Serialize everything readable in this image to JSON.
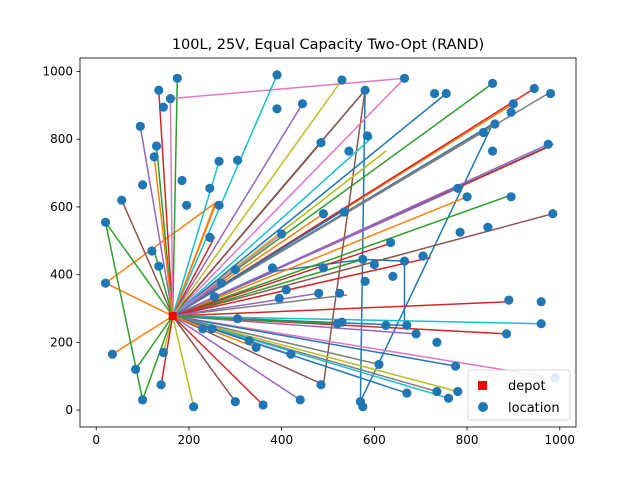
{
  "chart_data": {
    "type": "scatter",
    "title": "100L, 25V, Equal Capacity Two-Opt (RAND)",
    "xlabel": "",
    "ylabel": "",
    "xlim": [
      -35,
      1035
    ],
    "ylim": [
      -50,
      1040
    ],
    "x_ticks": [
      0,
      200,
      400,
      600,
      800,
      1000
    ],
    "y_ticks": [
      0,
      200,
      400,
      600,
      800,
      1000
    ],
    "grid": false,
    "legend_position": "lower-right",
    "legend": [
      {
        "label": "depot",
        "marker": "square",
        "color": "#ff0000"
      },
      {
        "label": "location",
        "marker": "circle",
        "color": "#1f77b4"
      }
    ],
    "depot": {
      "x": 165,
      "y": 278
    },
    "locations": [
      [
        135,
        945
      ],
      [
        175,
        980
      ],
      [
        160,
        920
      ],
      [
        145,
        895
      ],
      [
        95,
        838
      ],
      [
        130,
        780
      ],
      [
        125,
        748
      ],
      [
        185,
        678
      ],
      [
        100,
        665
      ],
      [
        55,
        620
      ],
      [
        195,
        605
      ],
      [
        245,
        655
      ],
      [
        265,
        735
      ],
      [
        305,
        738
      ],
      [
        390,
        990
      ],
      [
        390,
        890
      ],
      [
        445,
        905
      ],
      [
        485,
        790
      ],
      [
        530,
        975
      ],
      [
        545,
        765
      ],
      [
        580,
        945
      ],
      [
        585,
        810
      ],
      [
        665,
        980
      ],
      [
        755,
        935
      ],
      [
        855,
        965
      ],
      [
        860,
        845
      ],
      [
        900,
        905
      ],
      [
        895,
        880
      ],
      [
        945,
        950
      ],
      [
        980,
        935
      ],
      [
        975,
        785
      ],
      [
        835,
        820
      ],
      [
        855,
        765
      ],
      [
        780,
        655
      ],
      [
        800,
        630
      ],
      [
        895,
        630
      ],
      [
        985,
        580
      ],
      [
        845,
        540
      ],
      [
        785,
        525
      ],
      [
        730,
        935
      ],
      [
        20,
        555
      ],
      [
        120,
        470
      ],
      [
        135,
        425
      ],
      [
        245,
        510
      ],
      [
        265,
        605
      ],
      [
        300,
        415
      ],
      [
        400,
        520
      ],
      [
        490,
        420
      ],
      [
        535,
        585
      ],
      [
        575,
        445
      ],
      [
        580,
        380
      ],
      [
        635,
        495
      ],
      [
        665,
        440
      ],
      [
        705,
        455
      ],
      [
        20,
        375
      ],
      [
        35,
        165
      ],
      [
        85,
        120
      ],
      [
        100,
        30
      ],
      [
        140,
        75
      ],
      [
        145,
        170
      ],
      [
        210,
        10
      ],
      [
        300,
        25
      ],
      [
        360,
        15
      ],
      [
        440,
        30
      ],
      [
        485,
        75
      ],
      [
        570,
        25
      ],
      [
        575,
        10
      ],
      [
        610,
        135
      ],
      [
        670,
        50
      ],
      [
        735,
        55
      ],
      [
        760,
        35
      ],
      [
        780,
        55
      ],
      [
        775,
        130
      ],
      [
        885,
        225
      ],
      [
        890,
        325
      ],
      [
        960,
        320
      ],
      [
        960,
        255
      ],
      [
        990,
        95
      ],
      [
        330,
        205
      ],
      [
        345,
        185
      ],
      [
        420,
        165
      ],
      [
        520,
        255
      ],
      [
        530,
        260
      ],
      [
        625,
        250
      ],
      [
        670,
        250
      ],
      [
        690,
        225
      ],
      [
        490,
        580
      ],
      [
        480,
        345
      ],
      [
        525,
        345
      ],
      [
        380,
        420
      ],
      [
        230,
        240
      ],
      [
        250,
        240
      ],
      [
        255,
        335
      ],
      [
        305,
        270
      ],
      [
        395,
        330
      ],
      [
        410,
        355
      ],
      [
        600,
        430
      ],
      [
        640,
        395
      ],
      [
        270,
        375
      ],
      [
        735,
        200
      ]
    ],
    "routes": [
      {
        "color": "#1f77b4",
        "points": [
          [
            165,
            278
          ],
          [
            580,
            945
          ],
          [
            570,
            25
          ],
          [
            855,
            845
          ],
          [
            165,
            278
          ],
          [
            985,
            785
          ],
          [
            165,
            278
          ],
          [
            385,
            410
          ],
          [
            575,
            445
          ],
          [
            665,
            440
          ],
          [
            665,
            250
          ],
          [
            165,
            278
          ]
        ]
      },
      {
        "color": "#ff7f0e",
        "points": [
          [
            165,
            278
          ],
          [
            260,
            615
          ],
          [
            20,
            375
          ],
          [
            165,
            278
          ],
          [
            900,
            905
          ],
          [
            165,
            278
          ],
          [
            35,
            165
          ],
          [
            165,
            278
          ],
          [
            800,
            630
          ],
          [
            165,
            278
          ]
        ]
      },
      {
        "color": "#2ca02c",
        "points": [
          [
            165,
            278
          ],
          [
            175,
            980
          ],
          [
            165,
            278
          ],
          [
            855,
            965
          ],
          [
            165,
            278
          ],
          [
            20,
            555
          ],
          [
            100,
            30
          ],
          [
            165,
            278
          ],
          [
            575,
            445
          ],
          [
            165,
            278
          ]
        ]
      },
      {
        "color": "#d62728",
        "points": [
          [
            165,
            278
          ],
          [
            135,
            945
          ],
          [
            165,
            278
          ],
          [
            945,
            950
          ],
          [
            165,
            278
          ],
          [
            980,
            780
          ],
          [
            165,
            278
          ],
          [
            360,
            15
          ],
          [
            165,
            278
          ],
          [
            895,
            320
          ],
          [
            165,
            278
          ]
        ]
      },
      {
        "color": "#9467bd",
        "points": [
          [
            165,
            278
          ],
          [
            95,
            838
          ],
          [
            165,
            278
          ],
          [
            975,
            785
          ],
          [
            165,
            278
          ],
          [
            440,
            30
          ],
          [
            165,
            278
          ],
          [
            780,
            655
          ],
          [
            165,
            278
          ]
        ]
      },
      {
        "color": "#8c564b",
        "points": [
          [
            165,
            278
          ],
          [
            580,
            945
          ],
          [
            490,
            75
          ],
          [
            165,
            278
          ],
          [
            985,
            580
          ],
          [
            165,
            278
          ],
          [
            55,
            620
          ],
          [
            165,
            278
          ]
        ]
      },
      {
        "color": "#e377c2",
        "points": [
          [
            165,
            278
          ],
          [
            160,
            920
          ],
          [
            665,
            980
          ],
          [
            165,
            278
          ],
          [
            965,
            100
          ],
          [
            165,
            278
          ]
        ]
      },
      {
        "color": "#7f7f7f",
        "points": [
          [
            165,
            278
          ],
          [
            975,
            935
          ],
          [
            165,
            278
          ],
          [
            735,
            55
          ],
          [
            165,
            278
          ],
          [
            860,
            845
          ],
          [
            165,
            278
          ]
        ]
      },
      {
        "color": "#bcbd22",
        "points": [
          [
            165,
            278
          ],
          [
            210,
            10
          ],
          [
            165,
            278
          ],
          [
            625,
            765
          ],
          [
            165,
            278
          ],
          [
            780,
            55
          ],
          [
            165,
            278
          ]
        ]
      },
      {
        "color": "#17becf",
        "points": [
          [
            165,
            278
          ],
          [
            390,
            990
          ],
          [
            165,
            278
          ],
          [
            760,
            35
          ],
          [
            165,
            278
          ],
          [
            960,
            255
          ],
          [
            165,
            278
          ]
        ]
      },
      {
        "color": "#1f77b4",
        "points": [
          [
            165,
            278
          ],
          [
            755,
            935
          ],
          [
            165,
            278
          ],
          [
            775,
            130
          ],
          [
            165,
            278
          ],
          [
            540,
            595
          ],
          [
            165,
            278
          ]
        ]
      },
      {
        "color": "#ff7f0e",
        "points": [
          [
            165,
            278
          ],
          [
            255,
            605
          ],
          [
            165,
            278
          ],
          [
            490,
            580
          ],
          [
            165,
            278
          ]
        ]
      },
      {
        "color": "#2ca02c",
        "points": [
          [
            165,
            278
          ],
          [
            895,
            635
          ],
          [
            165,
            278
          ],
          [
            130,
            780
          ],
          [
            165,
            278
          ],
          [
            125,
            470
          ],
          [
            165,
            278
          ]
        ]
      },
      {
        "color": "#d62728",
        "points": [
          [
            165,
            278
          ],
          [
            885,
            225
          ],
          [
            165,
            278
          ],
          [
            640,
            495
          ],
          [
            165,
            278
          ],
          [
            255,
            510
          ],
          [
            165,
            278
          ]
        ]
      },
      {
        "color": "#9467bd",
        "points": [
          [
            165,
            278
          ],
          [
            445,
            905
          ],
          [
            165,
            278
          ],
          [
            300,
            415
          ],
          [
            165,
            278
          ],
          [
            690,
            225
          ],
          [
            165,
            278
          ]
        ]
      },
      {
        "color": "#8c564b",
        "points": [
          [
            165,
            278
          ],
          [
            485,
            790
          ],
          [
            165,
            278
          ],
          [
            300,
            25
          ],
          [
            165,
            278
          ]
        ]
      },
      {
        "color": "#e377c2",
        "points": [
          [
            165,
            278
          ],
          [
            400,
            520
          ],
          [
            165,
            278
          ],
          [
            420,
            165
          ],
          [
            165,
            278
          ]
        ]
      },
      {
        "color": "#7f7f7f",
        "points": [
          [
            165,
            278
          ],
          [
            540,
            340
          ],
          [
            165,
            278
          ],
          [
            610,
            135
          ],
          [
            165,
            278
          ]
        ]
      },
      {
        "color": "#bcbd22",
        "points": [
          [
            165,
            278
          ],
          [
            530,
            975
          ],
          [
            165,
            278
          ],
          [
            145,
            170
          ],
          [
            165,
            278
          ]
        ]
      },
      {
        "color": "#17becf",
        "points": [
          [
            165,
            278
          ],
          [
            265,
            735
          ],
          [
            165,
            278
          ],
          [
            595,
            805
          ],
          [
            165,
            278
          ]
        ]
      },
      {
        "color": "#1f77b4",
        "points": [
          [
            165,
            278
          ],
          [
            670,
            50
          ],
          [
            165,
            278
          ],
          [
            330,
            205
          ],
          [
            165,
            278
          ]
        ]
      },
      {
        "color": "#ff7f0e",
        "points": [
          [
            165,
            278
          ],
          [
            125,
            748
          ],
          [
            165,
            278
          ],
          [
            345,
            185
          ],
          [
            165,
            278
          ]
        ]
      },
      {
        "color": "#2ca02c",
        "points": [
          [
            165,
            278
          ],
          [
            85,
            120
          ],
          [
            165,
            278
          ],
          [
            520,
            255
          ],
          [
            165,
            278
          ]
        ]
      },
      {
        "color": "#d62728",
        "points": [
          [
            165,
            278
          ],
          [
            140,
            75
          ],
          [
            165,
            278
          ],
          [
            720,
            450
          ],
          [
            165,
            278
          ]
        ]
      },
      {
        "color": "#9467bd",
        "points": [
          [
            165,
            278
          ],
          [
            480,
            345
          ],
          [
            165,
            278
          ],
          [
            270,
            375
          ],
          [
            165,
            278
          ]
        ]
      }
    ]
  }
}
